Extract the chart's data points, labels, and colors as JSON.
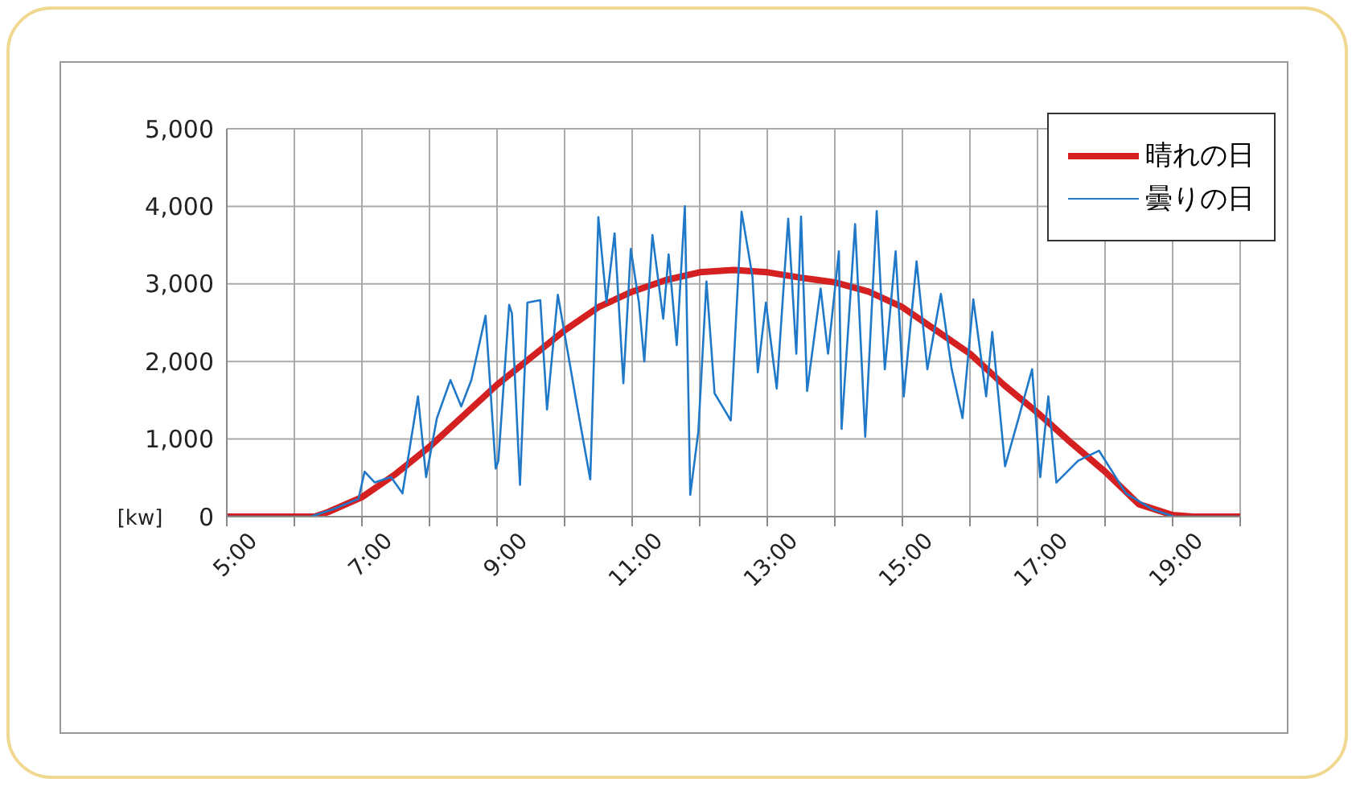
{
  "chart_data": {
    "type": "line",
    "ylabel": "[kw]",
    "xlim": [
      5,
      20
    ],
    "xticks": [
      {
        "value": 5,
        "label": "5:00"
      },
      {
        "value": 6,
        "label": null
      },
      {
        "value": 7,
        "label": "7:00"
      },
      {
        "value": 8,
        "label": null
      },
      {
        "value": 9,
        "label": "9:00"
      },
      {
        "value": 10,
        "label": null
      },
      {
        "value": 11,
        "label": "11:00"
      },
      {
        "value": 12,
        "label": null
      },
      {
        "value": 13,
        "label": "13:00"
      },
      {
        "value": 14,
        "label": null
      },
      {
        "value": 15,
        "label": "15:00"
      },
      {
        "value": 16,
        "label": null
      },
      {
        "value": 17,
        "label": "17:00"
      },
      {
        "value": 18,
        "label": null
      },
      {
        "value": 19,
        "label": "19:00"
      },
      {
        "value": 20,
        "label": null
      }
    ],
    "ylim": [
      0,
      5000
    ],
    "yticks": [
      {
        "value": 0,
        "label": "0"
      },
      {
        "value": 1000,
        "label": "1,000"
      },
      {
        "value": 2000,
        "label": "2,000"
      },
      {
        "value": 3000,
        "label": "3,000"
      },
      {
        "value": 4000,
        "label": "4,000"
      },
      {
        "value": 5000,
        "label": "5,000"
      }
    ],
    "grid": true,
    "legend": "top right",
    "marker": "none",
    "series": [
      {
        "name": "晴れの日",
        "color": "#d42020",
        "line_style": "solid",
        "x": [
          5,
          6,
          6.3,
          6.5,
          7,
          7.5,
          8,
          8.5,
          9,
          9.5,
          10,
          10.5,
          11,
          11.5,
          12,
          12.5,
          13,
          13.5,
          14,
          14.5,
          15,
          15.5,
          16,
          16.5,
          17,
          17.5,
          18,
          18.5,
          19,
          19.3,
          20
        ],
        "values": [
          0,
          0,
          0,
          60,
          250,
          550,
          900,
          1300,
          1700,
          2050,
          2400,
          2700,
          2900,
          3050,
          3150,
          3180,
          3150,
          3080,
          3020,
          2900,
          2700,
          2400,
          2100,
          1700,
          1340,
          950,
          580,
          160,
          20,
          0,
          0
        ]
      },
      {
        "name": "曇りの日",
        "color": "#1f78c8",
        "line_style": "solid",
        "x": [
          5,
          6,
          6.24,
          6.56,
          6.95,
          7.04,
          7.19,
          7.43,
          7.6,
          7.83,
          7.95,
          8.11,
          8.31,
          8.47,
          8.62,
          8.83,
          8.98,
          9.02,
          9.18,
          9.22,
          9.34,
          9.45,
          9.64,
          9.74,
          9.9,
          10.18,
          10.38,
          10.5,
          10.62,
          10.74,
          10.87,
          10.98,
          11.1,
          11.18,
          11.3,
          11.46,
          11.54,
          11.66,
          11.78,
          11.86,
          11.98,
          12.1,
          12.22,
          12.46,
          12.62,
          12.78,
          12.86,
          12.98,
          13.14,
          13.31,
          13.43,
          13.5,
          13.59,
          13.79,
          13.9,
          14.06,
          14.1,
          14.3,
          14.45,
          14.62,
          14.74,
          14.9,
          15.02,
          15.21,
          15.37,
          15.57,
          15.73,
          15.89,
          16.05,
          16.24,
          16.33,
          16.52,
          16.72,
          16.92,
          17.04,
          17.16,
          17.28,
          17.6,
          17.91,
          18.31,
          18.71,
          19.02,
          20
        ],
        "values": [
          0,
          0,
          0,
          90,
          230,
          580,
          440,
          510,
          300,
          1550,
          510,
          1270,
          1760,
          1420,
          1760,
          2590,
          620,
          720,
          2730,
          2620,
          410,
          2760,
          2790,
          1380,
          2860,
          1450,
          480,
          3860,
          2760,
          3650,
          1720,
          3450,
          2760,
          2000,
          3630,
          2550,
          3380,
          2210,
          4000,
          280,
          1100,
          3030,
          1590,
          1240,
          3930,
          3100,
          1860,
          2760,
          1650,
          3840,
          2100,
          3870,
          1620,
          2940,
          2100,
          3420,
          1130,
          3770,
          1030,
          3940,
          1900,
          3420,
          1550,
          3290,
          1900,
          2870,
          1900,
          1270,
          2800,
          1550,
          2380,
          650,
          1270,
          1900,
          510,
          1550,
          440,
          720,
          850,
          300,
          90,
          0,
          0
        ]
      }
    ]
  }
}
